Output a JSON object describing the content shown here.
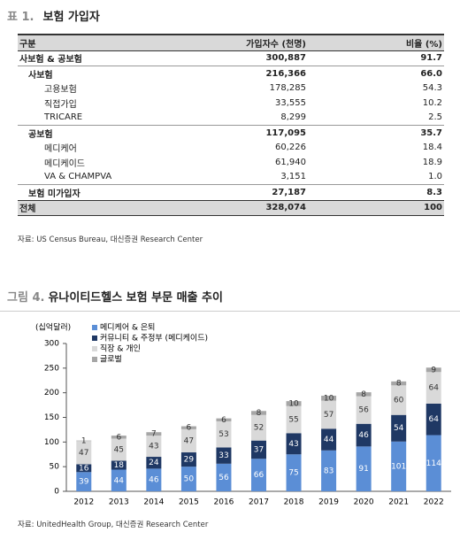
{
  "table": {
    "label": "표 1.",
    "title": "보험 가입자",
    "header": [
      "구분",
      "가입자수 (천명)",
      "비율 (%)"
    ],
    "rows": [
      [
        "사보험 & 공보험",
        "300,887",
        "91.7"
      ],
      [
        "사보험",
        "216,366",
        "66.0"
      ],
      [
        "고용보험",
        "178,285",
        "54.3"
      ],
      [
        "직접가입",
        "33,555",
        "10.2"
      ],
      [
        "TRICARE",
        "8,299",
        "2.5"
      ],
      [
        "공보험",
        "117,095",
        "35.7"
      ],
      [
        "메디케어",
        "60,226",
        "18.4"
      ],
      [
        "메디케이드",
        "61,940",
        "18.9"
      ],
      [
        "VA & CHAMPVA",
        "3,151",
        "1.0"
      ],
      [
        "보험 미가입자",
        "27,187",
        "8.3"
      ],
      [
        "전체",
        "328,074",
        "100"
      ]
    ],
    "source": "자료: US Census Bureau, 대신증권 Research Center"
  },
  "chart_data": {
    "type": "stacked_bar",
    "figure_label": "그림 4.",
    "title": "유나이티드헬스 보험 부문 매출 추이",
    "y_label": "(십억달러)",
    "categories": [
      "2012",
      "2013",
      "2014",
      "2015",
      "2016",
      "2017",
      "2018",
      "2019",
      "2020",
      "2021",
      "2022"
    ],
    "series": [
      {
        "name": "메디케어 & 은퇴",
        "color": "#5b8ed6",
        "values": [
          39,
          44,
          46,
          50,
          56,
          66,
          75,
          83,
          91,
          101,
          114
        ]
      },
      {
        "name": "커뮤니티 & 주정부 (메디케이드)",
        "color": "#1f3864",
        "values": [
          16,
          18,
          24,
          29,
          33,
          37,
          43,
          44,
          46,
          54,
          64
        ]
      },
      {
        "name": "직장 & 개인",
        "color": "#d9d9d9",
        "values": [
          47,
          45,
          43,
          47,
          53,
          52,
          55,
          57,
          56,
          60,
          64
        ]
      },
      {
        "name": "글로벌",
        "color": "#a6a6a6",
        "values": [
          1,
          6,
          7,
          6,
          6,
          8,
          10,
          10,
          8,
          8,
          9
        ]
      }
    ],
    "ylim": [
      0,
      300
    ],
    "yticks": [
      0,
      50,
      100,
      150,
      200,
      250,
      300
    ],
    "legend": "top-left",
    "source": "자료: UnitedHealth Group, 대신증권 Research Center"
  }
}
